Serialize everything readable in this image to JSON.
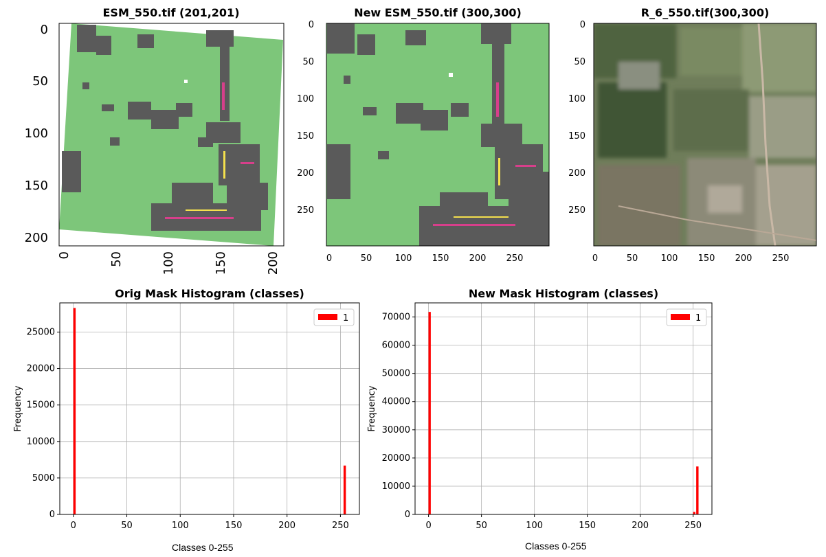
{
  "images": {
    "orig": {
      "title": "ESM_550.tif (201,201)",
      "yticks": [
        "0",
        "50",
        "100",
        "150",
        "200"
      ],
      "xticks": [
        "0",
        "50",
        "100",
        "150",
        "200"
      ]
    },
    "new": {
      "title": "New ESM_550.tif (300,300)",
      "yticks": [
        "0",
        "50",
        "100",
        "150",
        "200",
        "250"
      ],
      "xticks": [
        "0",
        "50",
        "100",
        "150",
        "200",
        "250"
      ]
    },
    "rgb": {
      "title": "R_6_550.tif(300,300)",
      "yticks": [
        "0",
        "50",
        "100",
        "150",
        "200",
        "250"
      ],
      "xticks": [
        "0",
        "50",
        "100",
        "150",
        "200",
        "250"
      ]
    }
  },
  "colors": {
    "mask_green": "#7dc67a",
    "mask_gray": "#5a5a5a",
    "bar_red": "#ff0000"
  },
  "chart_data": [
    {
      "type": "bar",
      "title": "Orig Mask Histogram (classes)",
      "ylabel": "Frequency",
      "xlabel": "",
      "xlim": [
        0,
        255
      ],
      "ylim": [
        0,
        29000
      ],
      "xticks": [
        0,
        50,
        100,
        150,
        200,
        250
      ],
      "yticks": [
        0,
        5000,
        10000,
        15000,
        20000,
        25000
      ],
      "grid": true,
      "legend": "top-right",
      "series": [
        {
          "name": "1",
          "x": [
            1,
            254
          ],
          "values": [
            28300,
            6700
          ]
        }
      ]
    },
    {
      "type": "bar",
      "title": "New Mask Histogram (classes)",
      "ylabel": "Frequency",
      "xlabel": "",
      "xlim": [
        0,
        255
      ],
      "ylim": [
        0,
        75000
      ],
      "xticks": [
        0,
        50,
        100,
        150,
        200,
        250
      ],
      "yticks": [
        0,
        10000,
        20000,
        30000,
        40000,
        50000,
        60000,
        70000
      ],
      "grid": true,
      "legend": "top-right",
      "series": [
        {
          "name": "1",
          "x": [
            1,
            251,
            254
          ],
          "values": [
            71800,
            900,
            17000
          ]
        }
      ]
    }
  ],
  "captions": {
    "left": "Classes 0-255",
    "right": "Classes 0-255"
  }
}
